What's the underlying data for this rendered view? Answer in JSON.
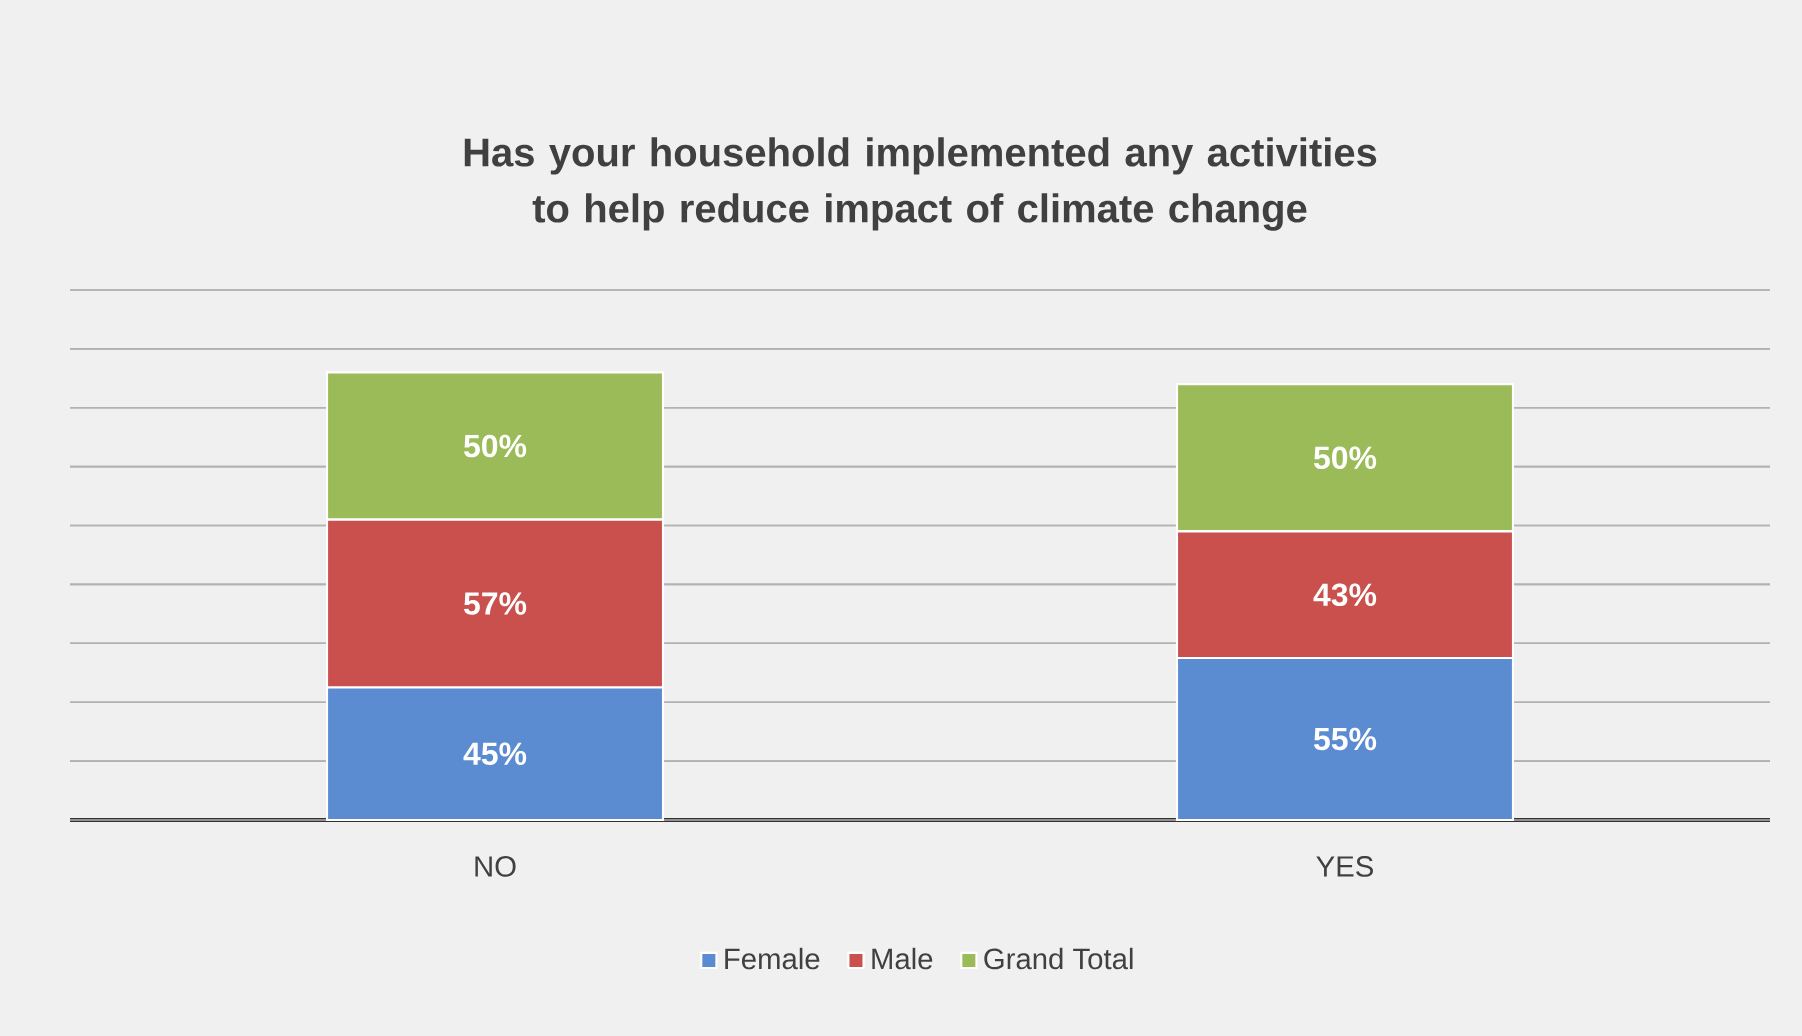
{
  "chart_data": {
    "type": "bar",
    "stacked": true,
    "title": "Has your household implemented any activities to help reduce impact of climate change",
    "categories": [
      "NO",
      "YES"
    ],
    "series": [
      {
        "name": "Female",
        "color": "#5b8bd0",
        "values": [
          45,
          55
        ],
        "value_labels": [
          "45%",
          "55%"
        ]
      },
      {
        "name": "Male",
        "color": "#c9504d",
        "values": [
          57,
          43
        ],
        "value_labels": [
          "57%",
          "43%"
        ]
      },
      {
        "name": "Grand Total",
        "color": "#9bbb59",
        "values": [
          50,
          50
        ],
        "value_labels": [
          "50%",
          "50%"
        ]
      }
    ],
    "ylim": [
      0,
      180
    ],
    "yticks": [
      {
        "value": 0,
        "label": null
      },
      {
        "value": 20,
        "label": null
      },
      {
        "value": 40,
        "label": null
      },
      {
        "value": 60,
        "label": null
      },
      {
        "value": 80,
        "label": null
      },
      {
        "value": 100,
        "label": null
      },
      {
        "value": 120,
        "label": null
      },
      {
        "value": 140,
        "label": null
      },
      {
        "value": 160,
        "label": null
      },
      {
        "value": 180,
        "label": null
      }
    ],
    "tick_labels": "x",
    "grid": "y",
    "legend": "bottom"
  }
}
